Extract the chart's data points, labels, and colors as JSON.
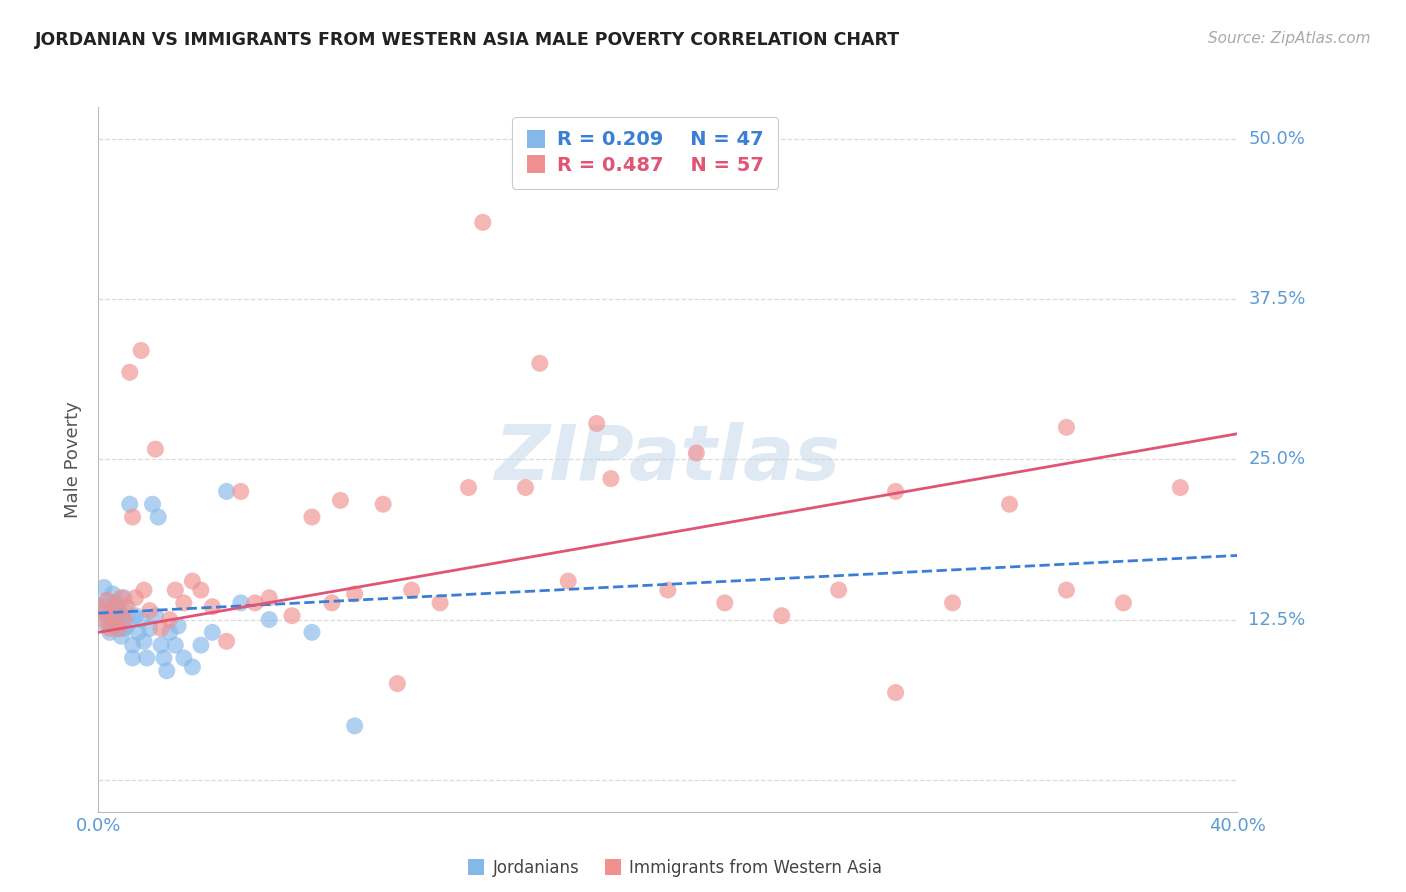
{
  "title": "JORDANIAN VS IMMIGRANTS FROM WESTERN ASIA MALE POVERTY CORRELATION CHART",
  "source": "Source: ZipAtlas.com",
  "ylabel": "Male Poverty",
  "xlim": [
    0.0,
    0.4
  ],
  "ylim": [
    -0.025,
    0.525
  ],
  "yticks": [
    0.0,
    0.125,
    0.25,
    0.375,
    0.5
  ],
  "ytick_labels": [
    "",
    "12.5%",
    "25.0%",
    "37.5%",
    "50.0%"
  ],
  "background_color": "#ffffff",
  "grid_color": "#d8d8d8",
  "blue_scatter_color": "#85b8e8",
  "pink_scatter_color": "#f09090",
  "blue_line_color": "#3a7fd5",
  "pink_line_color": "#e05575",
  "axis_color": "#bbbbbb",
  "tick_label_color": "#5b9bd5",
  "watermark": "ZIPatlas",
  "watermark_color": "#c5d8ec",
  "jordanians_x": [
    0.001,
    0.002,
    0.002,
    0.003,
    0.003,
    0.004,
    0.004,
    0.005,
    0.005,
    0.005,
    0.006,
    0.006,
    0.007,
    0.007,
    0.008,
    0.008,
    0.009,
    0.009,
    0.01,
    0.01,
    0.011,
    0.012,
    0.012,
    0.013,
    0.014,
    0.015,
    0.016,
    0.017,
    0.018,
    0.019,
    0.02,
    0.021,
    0.022,
    0.023,
    0.024,
    0.025,
    0.027,
    0.028,
    0.03,
    0.033,
    0.036,
    0.04,
    0.045,
    0.05,
    0.06,
    0.075,
    0.09
  ],
  "jordanians_y": [
    0.135,
    0.15,
    0.13,
    0.12,
    0.14,
    0.125,
    0.115,
    0.145,
    0.13,
    0.12,
    0.138,
    0.122,
    0.132,
    0.118,
    0.128,
    0.112,
    0.142,
    0.118,
    0.13,
    0.12,
    0.215,
    0.105,
    0.095,
    0.128,
    0.115,
    0.125,
    0.108,
    0.095,
    0.118,
    0.215,
    0.128,
    0.205,
    0.105,
    0.095,
    0.085,
    0.115,
    0.105,
    0.12,
    0.095,
    0.088,
    0.105,
    0.115,
    0.225,
    0.138,
    0.125,
    0.115,
    0.042
  ],
  "immigrants_x": [
    0.001,
    0.002,
    0.003,
    0.004,
    0.005,
    0.006,
    0.007,
    0.008,
    0.009,
    0.01,
    0.011,
    0.012,
    0.013,
    0.015,
    0.016,
    0.018,
    0.02,
    0.022,
    0.025,
    0.027,
    0.03,
    0.033,
    0.036,
    0.04,
    0.045,
    0.05,
    0.055,
    0.06,
    0.068,
    0.075,
    0.082,
    0.09,
    0.1,
    0.11,
    0.12,
    0.135,
    0.15,
    0.165,
    0.18,
    0.2,
    0.22,
    0.24,
    0.26,
    0.28,
    0.3,
    0.32,
    0.34,
    0.36,
    0.38,
    0.34,
    0.28,
    0.21,
    0.175,
    0.155,
    0.13,
    0.105,
    0.085
  ],
  "immigrants_y": [
    0.132,
    0.125,
    0.14,
    0.118,
    0.128,
    0.135,
    0.118,
    0.142,
    0.125,
    0.135,
    0.318,
    0.205,
    0.142,
    0.335,
    0.148,
    0.132,
    0.258,
    0.118,
    0.125,
    0.148,
    0.138,
    0.155,
    0.148,
    0.135,
    0.108,
    0.225,
    0.138,
    0.142,
    0.128,
    0.205,
    0.138,
    0.145,
    0.215,
    0.148,
    0.138,
    0.435,
    0.228,
    0.155,
    0.235,
    0.148,
    0.138,
    0.128,
    0.148,
    0.225,
    0.138,
    0.215,
    0.148,
    0.138,
    0.228,
    0.275,
    0.068,
    0.255,
    0.278,
    0.325,
    0.228,
    0.075,
    0.218
  ],
  "jord_trend_x0": 0.0,
  "jord_trend_y0": 0.13,
  "jord_trend_x1": 0.4,
  "jord_trend_y1": 0.175,
  "imm_trend_x0": 0.0,
  "imm_trend_y0": 0.115,
  "imm_trend_x1": 0.4,
  "imm_trend_y1": 0.27
}
